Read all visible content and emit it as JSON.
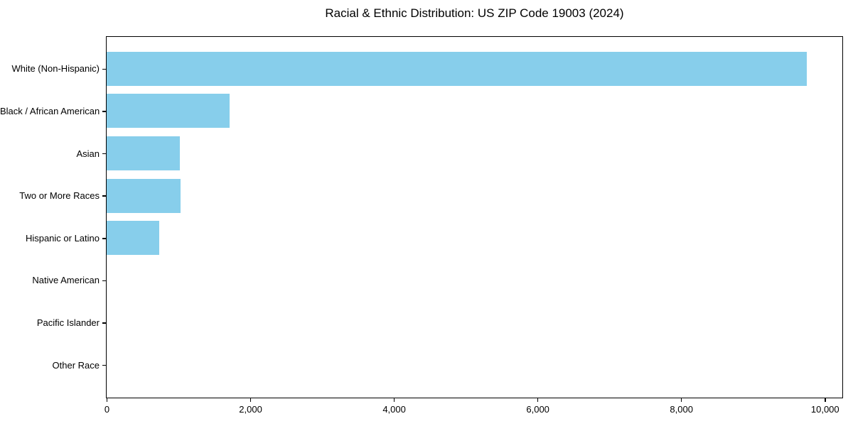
{
  "chart_data": {
    "type": "bar",
    "orientation": "horizontal",
    "title": "Racial & Ethnic Distribution: US ZIP Code 19003 (2024)",
    "categories": [
      "White (Non-Hispanic)",
      "Black / African American",
      "Asian",
      "Two or More Races",
      "Hispanic or Latino",
      "Native American",
      "Pacific Islander",
      "Other Race"
    ],
    "values": [
      9748,
      1717,
      1016,
      1029,
      733,
      0,
      0,
      0
    ],
    "xlabel": "",
    "ylabel": "",
    "xlim": [
      0,
      10235
    ],
    "x_ticks": [
      0,
      2000,
      4000,
      6000,
      8000,
      10000
    ],
    "x_tick_labels": [
      "0",
      "2,000",
      "4,000",
      "6,000",
      "8,000",
      "10,000"
    ],
    "bar_color": "#87CEEB",
    "background_color": "#FFFFFF",
    "axis_color": "#000000",
    "grid": false,
    "legend_position": "none"
  }
}
